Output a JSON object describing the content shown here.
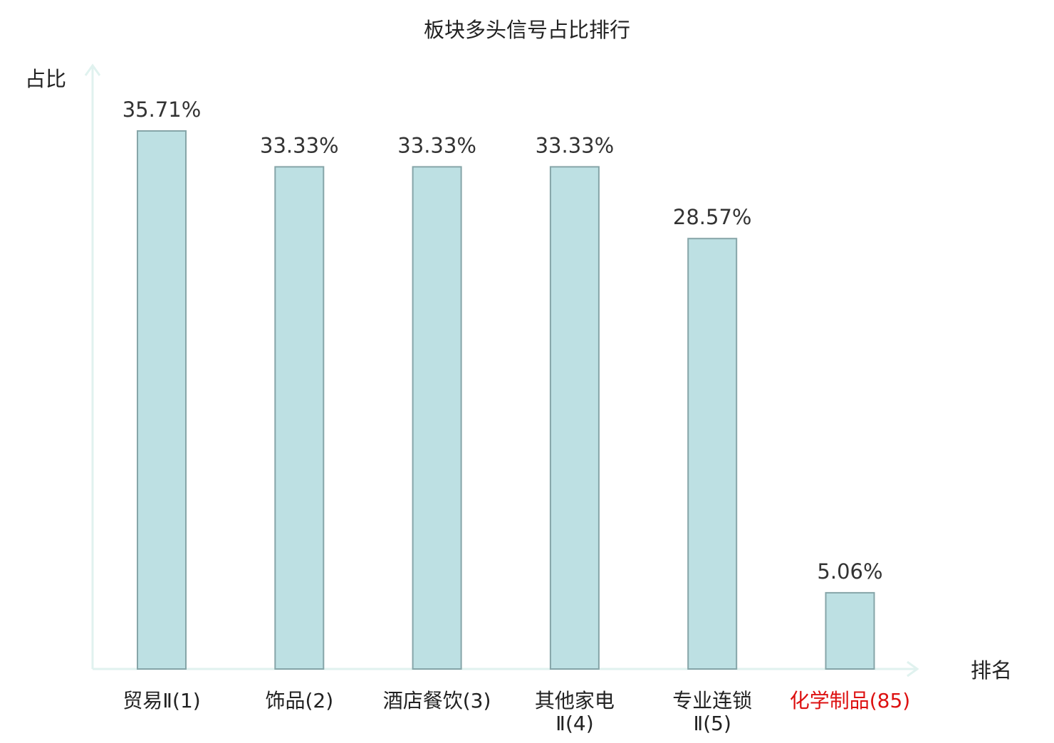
{
  "chart_data": {
    "type": "bar",
    "title": "板块多头信号占比排行",
    "ylabel": "占比",
    "xlabel": "排名",
    "ylim": [
      0,
      40
    ],
    "grid": false,
    "legend": "none",
    "categories": [
      {
        "lines": [
          "贸易Ⅱ(1)"
        ],
        "highlight": false
      },
      {
        "lines": [
          "饰品(2)"
        ],
        "highlight": false
      },
      {
        "lines": [
          "酒店餐饮(3)"
        ],
        "highlight": false
      },
      {
        "lines": [
          "其他家电",
          "Ⅱ(4)"
        ],
        "highlight": false
      },
      {
        "lines": [
          "专业连锁",
          "Ⅱ(5)"
        ],
        "highlight": false
      },
      {
        "lines": [
          "化学制品(85)"
        ],
        "highlight": true
      }
    ],
    "values": [
      35.71,
      33.33,
      33.33,
      33.33,
      28.57,
      5.06
    ],
    "value_labels": [
      "35.71%",
      "33.33%",
      "33.33%",
      "33.33%",
      "28.57%",
      "5.06%"
    ],
    "colors": {
      "bar_fill": "#bde0e3",
      "bar_stroke": "#86a5a8",
      "axis": "#e0f2ef",
      "text": "#222222",
      "value_text": "#333333",
      "highlight_text": "#dd1111"
    }
  }
}
